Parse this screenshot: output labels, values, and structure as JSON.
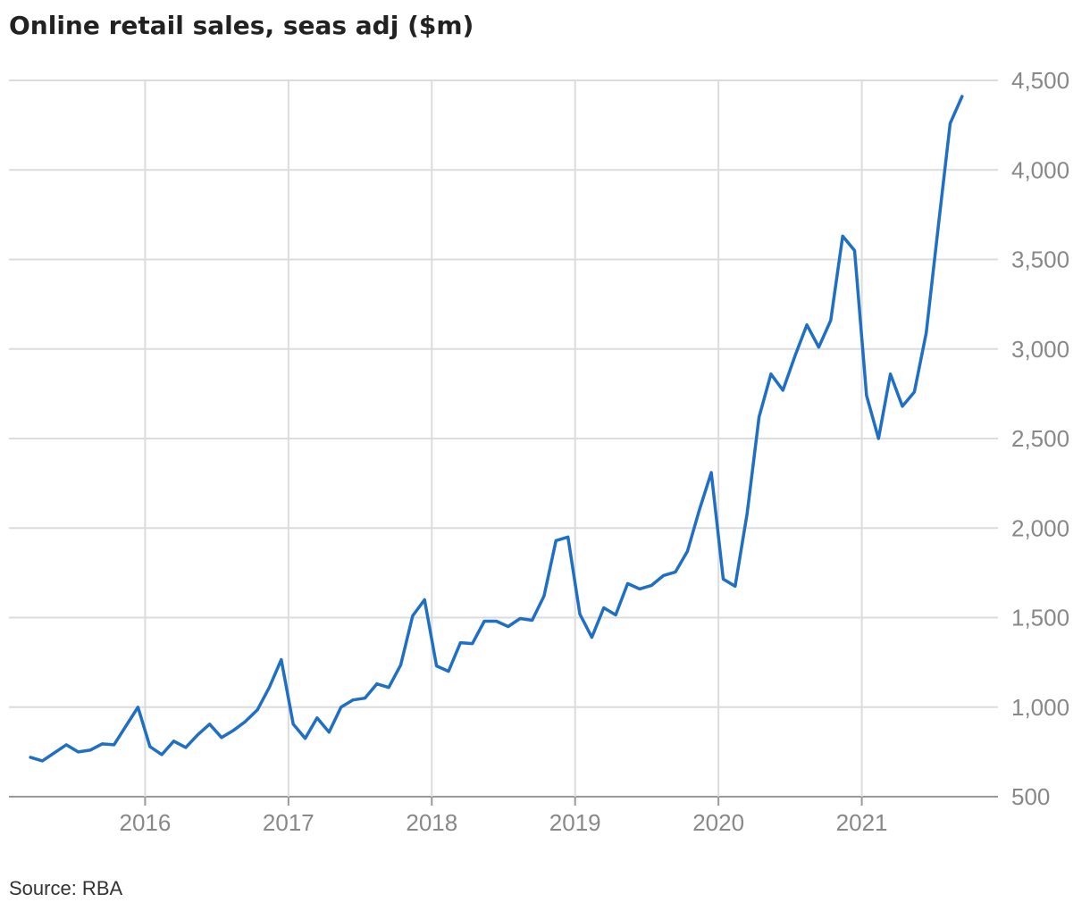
{
  "chart_data": {
    "type": "line",
    "title": "Online retail sales, seas adj ($m)",
    "source": "Source: RBA",
    "xlabel": "",
    "ylabel": "",
    "ylim": [
      500,
      4500
    ],
    "yticks": [
      500,
      1000,
      1500,
      2000,
      2500,
      3000,
      3500,
      4000,
      4500
    ],
    "ytick_labels": [
      "500",
      "1,000",
      "1,500",
      "2,000",
      "2,500",
      "3,000",
      "3,500",
      "4,000",
      "4,500"
    ],
    "xticks": [
      2016,
      2017,
      2018,
      2019,
      2020,
      2021
    ],
    "xtick_labels": [
      "2016",
      "2017",
      "2018",
      "2019",
      "2020",
      "2021"
    ],
    "xlim": [
      2015.05,
      2021.95
    ],
    "y_axis_position": "right",
    "grid": true,
    "line_color": "#1f6fc4",
    "series": [
      {
        "x_start": 2015.2,
        "x_step": 0.08333,
        "values": [
          720,
          700,
          745,
          790,
          750,
          760,
          795,
          790,
          895,
          1000,
          780,
          735,
          810,
          775,
          845,
          905,
          830,
          870,
          920,
          985,
          1110,
          1265,
          905,
          825,
          940,
          860,
          1000,
          1040,
          1050,
          1130,
          1110,
          1235,
          1510,
          1600,
          1230,
          1200,
          1360,
          1355,
          1480,
          1480,
          1450,
          1495,
          1485,
          1620,
          1930,
          1950,
          1520,
          1390,
          1555,
          1515,
          1690,
          1660,
          1680,
          1735,
          1755,
          1870,
          2100,
          2310,
          1715,
          1675,
          2080,
          2620,
          2860,
          2770,
          2960,
          3135,
          3010,
          3160,
          3630,
          3550,
          2740,
          2500,
          2860,
          2680,
          2760,
          3090,
          3680,
          4260,
          4410
        ]
      }
    ]
  }
}
